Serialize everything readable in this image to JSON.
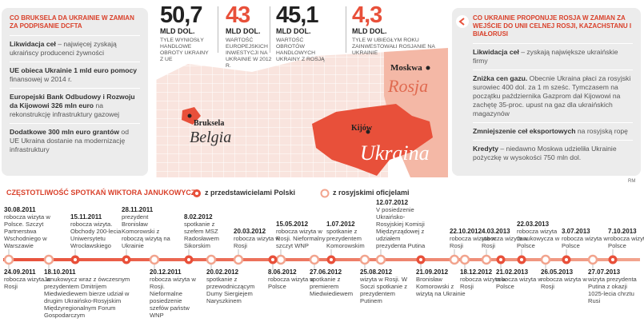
{
  "left_panel": {
    "title": "CO BRUKSELA DA UKRAINIE W ZAMIAN ZA PODPISANIE DCFTA",
    "items": [
      {
        "bold": "Likwidacja ceł",
        "text": " – najwięcej zyskają ukraińscy producenci żywności"
      },
      {
        "bold": "UE obieca Ukrainie 1 mld euro pomocy",
        "text": " finansowej w 2014 r."
      },
      {
        "bold": "Europejski Bank Odbudowy i Rozwoju da Kijowowi 326 mln euro",
        "text": " na rekonstrukcję infrastruktury gazowej"
      },
      {
        "bold": "Dodatkowe 300 mln euro grantów",
        "text": " od UE Ukraina dostanie na modernizację infrastruktury"
      }
    ]
  },
  "stats": [
    {
      "value": "50,7",
      "unit": "MLD DOL.",
      "text": "TYLE WYNIOSŁY HANDLOWE OBROTY UKRAINY Z UE",
      "color": "#222222"
    },
    {
      "value": "43",
      "unit": "MLD DOL.",
      "text": "WARTOŚĆ EUROPEJSKICH INWESTYCJI NA UKRAINIE W 2012 R.",
      "color": "#e8503a"
    },
    {
      "value": "45,1",
      "unit": "MLD DOL.",
      "text": "WARTOŚĆ OBROTÓW HANDLOWYCH UKRAINY Z ROSJĄ",
      "color": "#222222"
    },
    {
      "value": "4,3",
      "unit": "MLD DOL.",
      "text": "TYLE W UBIEGŁYM ROKU ZAINWESTOWAŁI ROSJANIE NA UKRAINIE",
      "color": "#e8503a"
    }
  ],
  "map": {
    "moscow": "Moskwa",
    "russia": "Rosja",
    "brussels": "Bruksela",
    "belgium": "Belgia",
    "kyiv": "Kijów",
    "ukraine": "Ukraina"
  },
  "right_panel": {
    "title": "CO UKRAINIE PROPONUJE ROSJA W ZAMIAN ZA WEJŚCIE DO UNII CELNEJ ROSJI, KAZACHSTANU I BIAŁORUSI",
    "items": [
      {
        "bold": "Likwidacja ceł",
        "text": " – zyskają największe ukraińskie firmy"
      },
      {
        "bold": "Zniżka cen gazu.",
        "text": " Obecnie Ukraina płaci za rosyjski surowiec 400 dol. za 1 m sześc. Tymczasem na początku października Gazprom dał Kijowowi na zachętę 35-proc. upust na gaz dla ukraińskich magazynów"
      },
      {
        "bold": "Zmniejszenie ceł eksportowych",
        "text": " na rosyjską ropę"
      },
      {
        "bold": "Kredyty",
        "text": " – niedawno Moskwa udzieliła Ukrainie pożyczkę w wysokości 750 mln dol."
      }
    ]
  },
  "credit": "RM",
  "timeline": {
    "title": "CZĘSTOTLIWOŚĆ SPOTKAŃ WIKTORA JANUKOWYCZA",
    "legend": {
      "poland": "z przedstawicielami Polski",
      "russia": "z rosyjskimi oficjelami"
    },
    "events_top": [
      {
        "date": "30.08.2011",
        "text": "robocza wizyta w Polsce. Szczyt Partnerstwa Wschodniego w Warszawie",
        "kind": "poland"
      },
      {
        "date": "15.11.2011",
        "text": "robocza wizyta. Obchody 200-lecia Uniwersytetu Wrocławskiego",
        "kind": "poland"
      },
      {
        "date": "28.11.2011",
        "text": "prezydent Bronisław Komorowski z roboczą wizytą na Ukrainie",
        "kind": "poland"
      },
      {
        "date": "8.02.2012",
        "text": "spotkanie z szefem MSZ Radosławem Sikorskim",
        "kind": "poland"
      },
      {
        "date": "20.03.2012",
        "text": "robocza wizyta w Rosji",
        "kind": "russia"
      },
      {
        "date": "15.05.2012",
        "text": "robocza wizyta w Rosji. Nieformalny szczyt WNP",
        "kind": "russia"
      },
      {
        "date": "1.07.2012",
        "text": "spotkanie z prezydentem Komorowskim",
        "kind": "poland"
      },
      {
        "date": "12.07.2012",
        "text": "V posiedzenie Ukraińsko-Rosyjskiej Komisji Międzyrządowej z udziałem prezydenta Putina",
        "kind": "russia"
      },
      {
        "date": "22.10.2012",
        "text": "robocza wizyta w Rosji",
        "kind": "russia"
      },
      {
        "date": "4.03.2013",
        "text": "robocza wizyta w Rosji",
        "kind": "russia"
      },
      {
        "date": "22.03.2013",
        "text": "robocza wizyta Janukowycza w Polsce",
        "kind": "poland"
      },
      {
        "date": "3.07.2013",
        "text": "robocza wizyta w Polsce",
        "kind": "poland"
      },
      {
        "date": "7.10.2013",
        "text": "robocza wizyta w Polsce",
        "kind": "poland"
      }
    ],
    "events_bottom": [
      {
        "date": "24.09.2011",
        "text": "robocza wizyta w Rosji",
        "kind": "russia"
      },
      {
        "date": "18.10.2011",
        "text": "Janukowycz wraz z ówczesnym prezydentem Dmitrijem Miedwiediewem bierze udział w drugim Ukraińsko-Rosyjskim Międzyregionalnym Forum Gospodarczym",
        "kind": "russia"
      },
      {
        "date": "20.12.2011",
        "text": "robocza wizyta w Rosji. Nieformalne posiedzenie szefów państw WNP",
        "kind": "russia"
      },
      {
        "date": "20.02.2012",
        "text": "spotkanie z przewodniczącym Dumy Siergiejem Naryszkinem",
        "kind": "russia"
      },
      {
        "date": "8.06.2012",
        "text": "robocza wizyta w Polsce",
        "kind": "poland"
      },
      {
        "date": "27.06.2012",
        "text": "spotkanie z premierem Miedwiediewem",
        "kind": "russia"
      },
      {
        "date": "25.08.2012",
        "text": "wizyta w Rosji. W Soczi spotkanie z prezydentem Putinem",
        "kind": "russia"
      },
      {
        "date": "21.09.2012",
        "text": "Bronisław Komorowski z wizytą na Ukrainie",
        "kind": "poland"
      },
      {
        "date": "18.12.2012",
        "text": "robocza wizyta w Rosji",
        "kind": "russia"
      },
      {
        "date": "21.02.2013",
        "text": "robocza wizyta w Polsce",
        "kind": "poland"
      },
      {
        "date": "26.05.2013",
        "text": "robocza wizyta w Rosji",
        "kind": "russia"
      },
      {
        "date": "27.07.2013",
        "text": "wizyta prezydenta Putina z okazji 1025-lecia chrztu Rusi",
        "kind": "russia"
      }
    ]
  }
}
